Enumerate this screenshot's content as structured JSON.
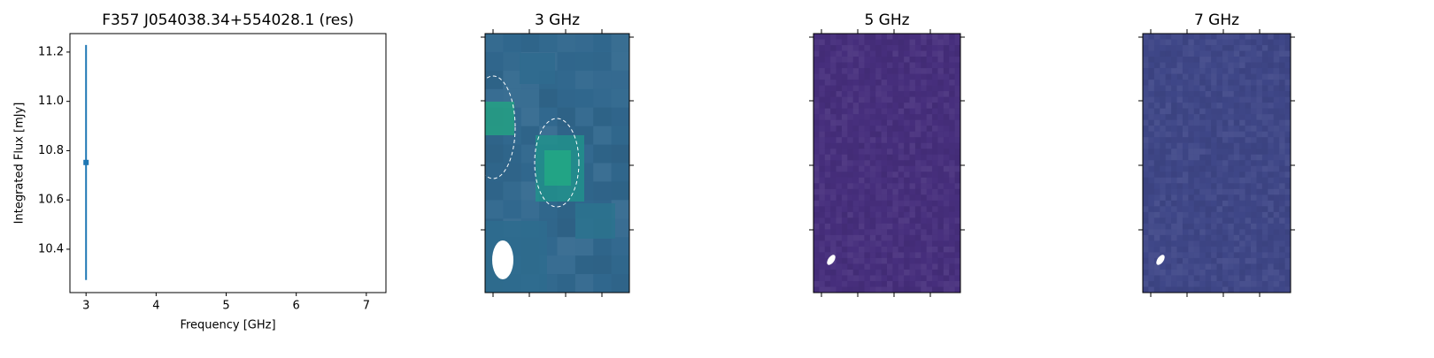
{
  "chart_data": [
    {
      "type": "errorbar",
      "title": "F357 J054038.34+554028.1 (res)",
      "x_label": "Frequency [GHz]",
      "y_label": "Integrated Flux [mJy]",
      "x": [
        3
      ],
      "y": [
        10.752
      ],
      "yerr": [
        0.477
      ],
      "color": "#1f77b4",
      "xlim": [
        2.77,
        7.28
      ],
      "xticks": [
        3,
        4,
        5,
        6,
        7
      ],
      "ylim": [
        10.224,
        11.275
      ],
      "yticks": [
        10.4,
        10.6,
        10.8,
        {
          "value": 11,
          "label": "11.0"
        },
        11.2
      ]
    },
    {
      "type": "image",
      "title": "3 GHz",
      "color": "#31688e"
    },
    {
      "type": "image",
      "title": "5 GHz",
      "color": "#472f7d"
    },
    {
      "type": "image",
      "title": "7 GHz",
      "color": "#3f4788"
    }
  ]
}
